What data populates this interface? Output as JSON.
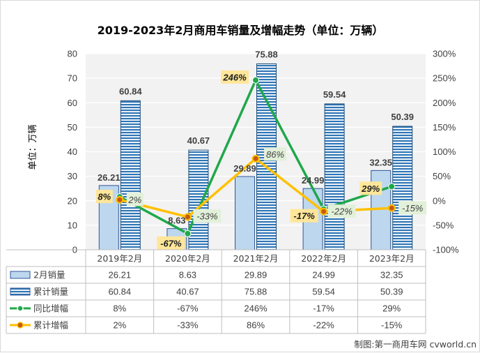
{
  "chart_data": {
    "type": "bar",
    "title": "2019-2023年2月商用车销量及增幅走势（单位：万辆）",
    "ylabel": "单位：万辆",
    "ylim": [
      0,
      80
    ],
    "y_ticks": [
      "0",
      "10",
      "20",
      "30",
      "40",
      "50",
      "60",
      "70",
      "80"
    ],
    "y2lim": [
      -100,
      300
    ],
    "y2_ticks": [
      "-100%",
      "-50%",
      "0%",
      "50%",
      "100%",
      "150%",
      "200%",
      "250%",
      "300%"
    ],
    "categories": [
      "2019年2月",
      "2020年2月",
      "2021年2月",
      "2022年2月",
      "2023年2月"
    ],
    "series": [
      {
        "name": "2月销量",
        "kind": "bar",
        "color": "#bdd7ee",
        "values": [
          26.21,
          8.63,
          29.89,
          24.99,
          32.35
        ],
        "labels": [
          "26.21",
          "8.63",
          "29.89",
          "24.99",
          "32.35"
        ]
      },
      {
        "name": "累计销量",
        "kind": "bar",
        "color": "#2e75b6",
        "values": [
          60.84,
          40.67,
          75.88,
          59.54,
          50.39
        ],
        "labels": [
          "60.84",
          "40.67",
          "75.88",
          "59.54",
          "50.39"
        ]
      },
      {
        "name": "同比增幅",
        "kind": "line",
        "axis": "secondary",
        "color": "#1fa84a",
        "values": [
          8,
          -67,
          246,
          -17,
          29
        ],
        "labels": [
          "8%",
          "-67%",
          "246%",
          "-17%",
          "29%"
        ]
      },
      {
        "name": "累计增幅",
        "kind": "line",
        "axis": "secondary",
        "color": "#ffc000",
        "values": [
          2,
          -33,
          86,
          -22,
          -15
        ],
        "labels": [
          "2%",
          "-33%",
          "86%",
          "-22%",
          "-15%"
        ]
      }
    ],
    "grid": true,
    "legend": "data-table-below"
  },
  "credit": "制图:第一商用车网 cvworld.cn"
}
